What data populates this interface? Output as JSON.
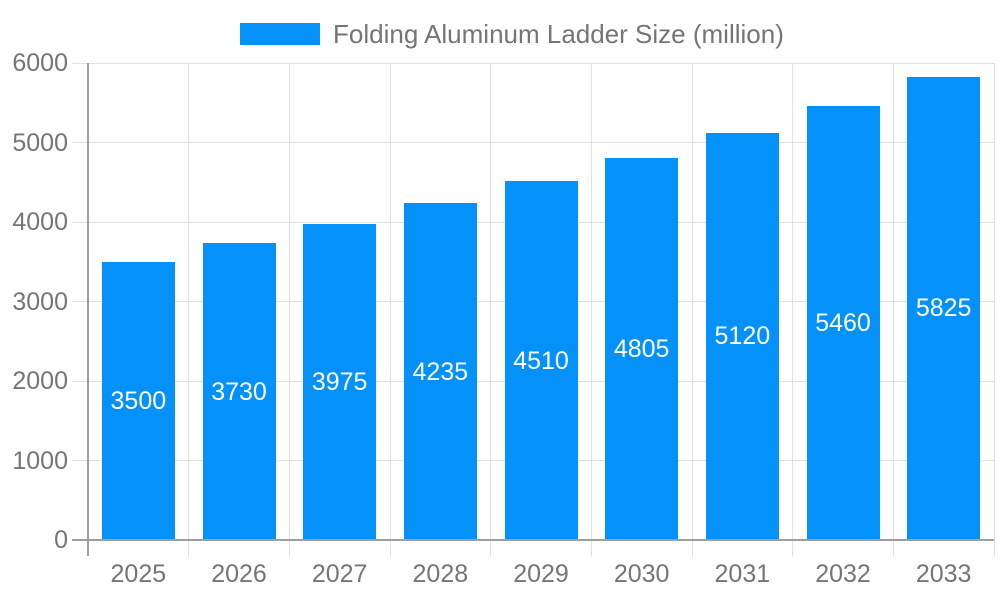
{
  "chart_data": {
    "type": "bar",
    "title": "Folding Aluminum Ladder Size (million)",
    "legend": {
      "position": "top",
      "label": "Folding Aluminum Ladder Size (million)"
    },
    "categories": [
      "2025",
      "2026",
      "2027",
      "2028",
      "2029",
      "2030",
      "2031",
      "2032",
      "2033"
    ],
    "values": [
      3500,
      3730,
      3975,
      4235,
      4510,
      4805,
      5120,
      5460,
      5825
    ],
    "xlabel": "",
    "ylabel": "",
    "ylim": [
      0,
      6000
    ],
    "yticks": [
      0,
      1000,
      2000,
      3000,
      4000,
      5000,
      6000
    ],
    "grid": true,
    "bar_labels_inside": true,
    "colors": {
      "bar": "#0491fa",
      "grid": "#e0e0e0",
      "axis": "#9e9e9e",
      "tick_text": "#757575",
      "bar_label_text": "#ffffff",
      "background": "#ffffff"
    }
  }
}
